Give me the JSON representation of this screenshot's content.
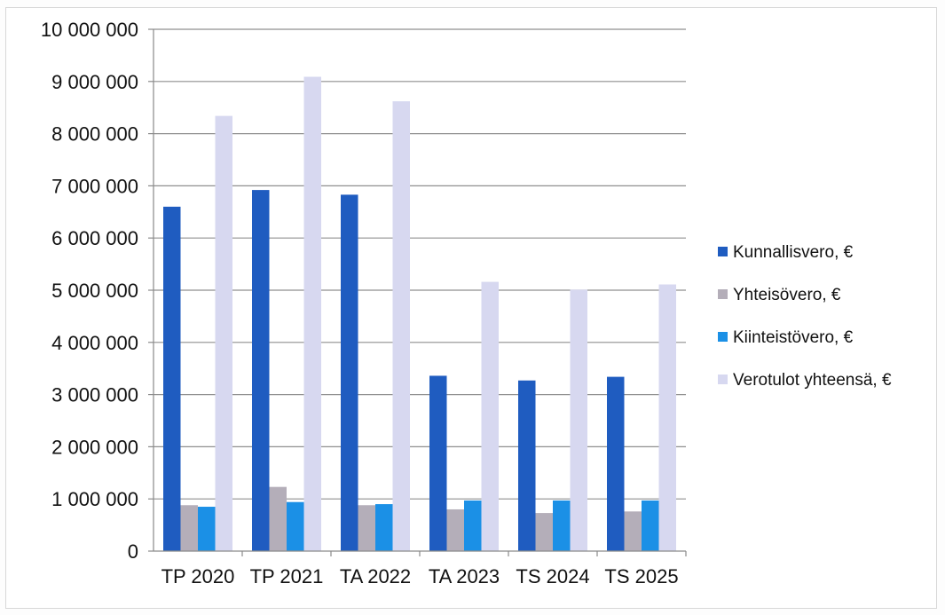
{
  "chart_data": {
    "type": "bar",
    "title": "",
    "xlabel": "",
    "ylabel": "",
    "categories": [
      "TP 2020",
      "TP 2021",
      "TA 2022",
      "TA 2023",
      "TS 2024",
      "TS 2025"
    ],
    "series": [
      {
        "name": "Kunnallisvero, €",
        "color": "#1f5cc0",
        "values": [
          6600000,
          6920000,
          6830000,
          3360000,
          3270000,
          3340000
        ]
      },
      {
        "name": "Yhteisövero, €",
        "color": "#b4aeb9",
        "values": [
          880000,
          1230000,
          880000,
          800000,
          730000,
          760000
        ]
      },
      {
        "name": "Kiinteistövero, €",
        "color": "#1b90e6",
        "values": [
          850000,
          940000,
          900000,
          970000,
          970000,
          970000
        ]
      },
      {
        "name": "Verotulot yhteensä, €",
        "color": "#d7d8f0",
        "values": [
          8340000,
          9090000,
          8620000,
          5160000,
          5010000,
          5110000
        ]
      }
    ],
    "y_ticks": [
      "0",
      "1 000 000",
      "2 000 000",
      "3 000 000",
      "4 000 000",
      "5 000 000",
      "6 000 000",
      "7 000 000",
      "8 000 000",
      "9 000 000",
      "10 000 000"
    ],
    "ylim": [
      0,
      10000000
    ],
    "grid": true,
    "legend_position": "right"
  }
}
